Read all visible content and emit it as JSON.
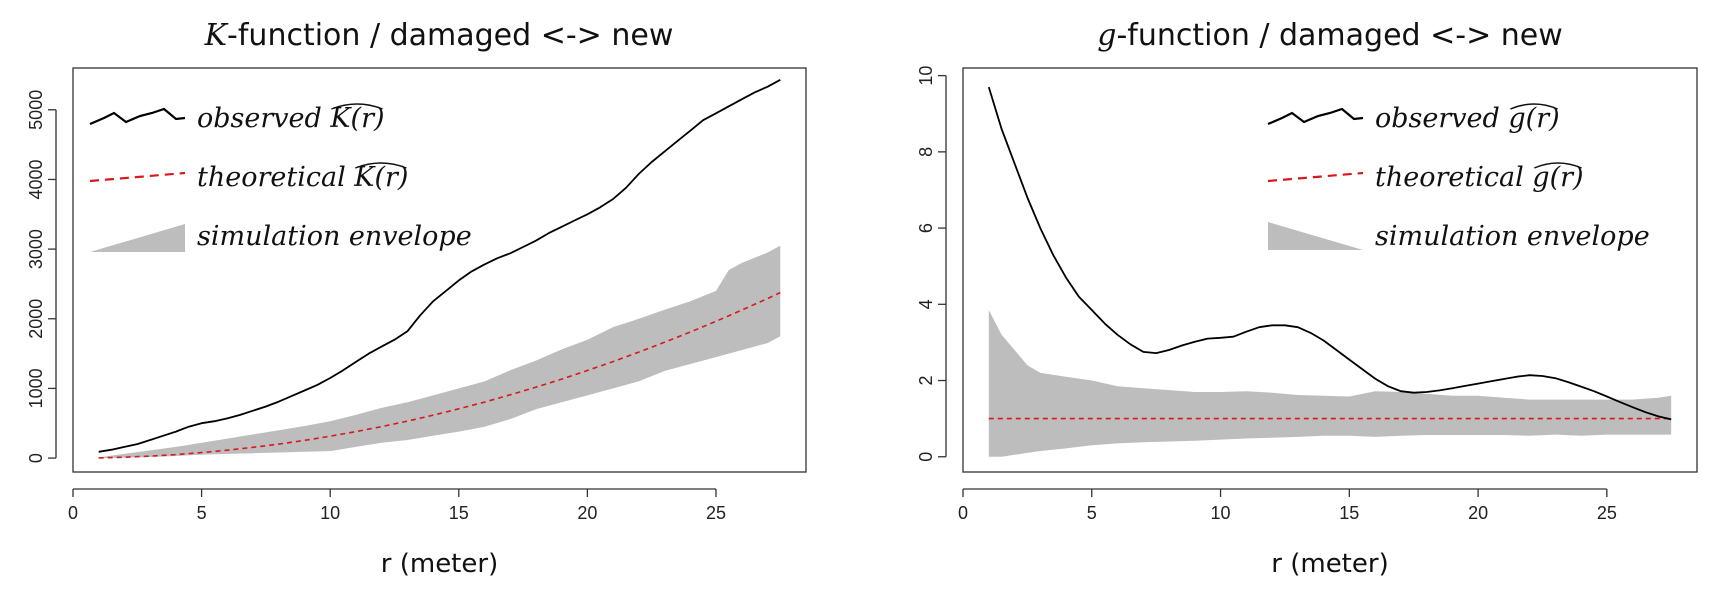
{
  "chart_data": [
    {
      "type": "line",
      "title_parts": [
        "K",
        "-function / damaged <-> new"
      ],
      "xlabel": "r (meter)",
      "ylabel": "",
      "xlim": [
        0,
        28.5
      ],
      "ylim": [
        -200,
        5600
      ],
      "xticks": [
        "0",
        "5",
        "10",
        "15",
        "20",
        "25"
      ],
      "yticks": [
        "0",
        "1000",
        "2000",
        "3000",
        "4000",
        "5000"
      ],
      "legend_position": "top-left",
      "legend": {
        "observed_prefix": "observed ",
        "observed_symbol": "K(r)",
        "theoretical_prefix": "theoretical ",
        "theoretical_symbol": "K(r)",
        "envelope": "simulation envelope"
      },
      "colors": {
        "observed": "#000000",
        "theoretical": "#d7191c",
        "envelope": "#bdbdbd"
      },
      "series": [
        {
          "kind": "observed",
          "x": [
            1,
            1.5,
            2,
            2.5,
            3,
            3.5,
            4,
            4.5,
            5,
            5.5,
            6,
            6.5,
            7,
            7.5,
            8,
            8.5,
            9,
            9.5,
            10,
            10.5,
            11,
            11.5,
            12,
            12.5,
            13,
            13.5,
            14,
            14.5,
            15,
            15.5,
            16,
            16.5,
            17,
            17.5,
            18,
            18.5,
            19,
            19.5,
            20,
            20.5,
            21,
            21.5,
            22,
            22.5,
            23,
            23.5,
            24,
            24.5,
            25,
            25.5,
            26,
            26.5,
            27,
            27.5
          ],
          "y": [
            90,
            120,
            160,
            200,
            260,
            320,
            380,
            450,
            500,
            530,
            570,
            620,
            680,
            740,
            810,
            890,
            970,
            1050,
            1150,
            1260,
            1380,
            1500,
            1600,
            1700,
            1820,
            2050,
            2250,
            2400,
            2550,
            2680,
            2780,
            2870,
            2940,
            3030,
            3120,
            3230,
            3320,
            3410,
            3500,
            3600,
            3720,
            3880,
            4080,
            4250,
            4400,
            4550,
            4700,
            4850,
            4950,
            5050,
            5150,
            5250,
            5330,
            5430
          ]
        },
        {
          "kind": "theoretical",
          "x": [
            1,
            2,
            3,
            4,
            5,
            6,
            7,
            8,
            9,
            10,
            11,
            12,
            13,
            14,
            15,
            16,
            17,
            18,
            19,
            20,
            21,
            22,
            23,
            24,
            25,
            26,
            27,
            27.5
          ],
          "y": [
            3,
            13,
            28,
            50,
            79,
            113,
            154,
            201,
            254,
            314,
            380,
            452,
            531,
            616,
            707,
            804,
            908,
            1018,
            1134,
            1257,
            1385,
            1521,
            1662,
            1810,
            1963,
            2124,
            2290,
            2376
          ]
        },
        {
          "kind": "envelope",
          "x": [
            1,
            2,
            3,
            4,
            5,
            6,
            7,
            8,
            9,
            10,
            11,
            12,
            13,
            14,
            15,
            16,
            17,
            18,
            19,
            20,
            21,
            22,
            23,
            24,
            25,
            25.5,
            26,
            27,
            27.5
          ],
          "upper": [
            10,
            60,
            110,
            160,
            220,
            280,
            340,
            400,
            460,
            530,
            620,
            720,
            800,
            900,
            1000,
            1100,
            1260,
            1400,
            1560,
            1700,
            1880,
            2000,
            2130,
            2250,
            2400,
            2700,
            2800,
            2950,
            3050
          ],
          "lower": [
            0,
            5,
            15,
            30,
            50,
            60,
            70,
            80,
            90,
            100,
            160,
            220,
            260,
            320,
            380,
            450,
            560,
            700,
            800,
            900,
            1000,
            1100,
            1250,
            1350,
            1450,
            1500,
            1550,
            1650,
            1750
          ]
        }
      ]
    },
    {
      "type": "line",
      "title_parts": [
        "g",
        "-function / damaged <-> new"
      ],
      "xlabel": "r (meter)",
      "ylabel": "",
      "xlim": [
        0,
        28.5
      ],
      "ylim": [
        -0.4,
        10.2
      ],
      "xticks": [
        "0",
        "5",
        "10",
        "15",
        "20",
        "25"
      ],
      "yticks": [
        "0",
        "2",
        "4",
        "6",
        "8",
        "10"
      ],
      "legend_position": "top-right",
      "legend": {
        "observed_prefix": "observed ",
        "observed_symbol": "g(r)",
        "theoretical_prefix": "theoretical ",
        "theoretical_symbol": "g(r)",
        "envelope": "simulation envelope"
      },
      "colors": {
        "observed": "#000000",
        "theoretical": "#d7191c",
        "envelope": "#bdbdbd"
      },
      "series": [
        {
          "kind": "observed",
          "x": [
            1,
            1.5,
            2,
            2.5,
            3,
            3.5,
            4,
            4.5,
            5,
            5.5,
            6,
            6.5,
            7,
            7.5,
            8,
            8.5,
            9,
            9.5,
            10,
            10.5,
            11,
            11.5,
            12,
            12.5,
            13,
            13.5,
            14,
            14.5,
            15,
            15.5,
            16,
            16.5,
            17,
            17.5,
            18,
            18.5,
            19,
            19.5,
            20,
            20.5,
            21,
            21.5,
            22,
            22.5,
            23,
            23.5,
            24,
            24.5,
            25,
            25.5,
            26,
            26.5,
            27,
            27.5
          ],
          "y": [
            9.7,
            8.6,
            7.7,
            6.8,
            6.0,
            5.3,
            4.7,
            4.2,
            3.85,
            3.5,
            3.2,
            2.95,
            2.75,
            2.72,
            2.8,
            2.92,
            3.02,
            3.1,
            3.12,
            3.15,
            3.28,
            3.4,
            3.45,
            3.45,
            3.4,
            3.25,
            3.05,
            2.8,
            2.55,
            2.3,
            2.05,
            1.85,
            1.72,
            1.68,
            1.7,
            1.74,
            1.8,
            1.86,
            1.92,
            1.98,
            2.04,
            2.1,
            2.14,
            2.12,
            2.06,
            1.96,
            1.84,
            1.72,
            1.58,
            1.44,
            1.3,
            1.17,
            1.06,
            0.98
          ]
        },
        {
          "kind": "theoretical",
          "x": [
            1,
            27.5
          ],
          "y": [
            1,
            1
          ]
        },
        {
          "kind": "envelope",
          "x": [
            1,
            1.5,
            2,
            2.5,
            3,
            4,
            5,
            6,
            7,
            8,
            9,
            10,
            11,
            12,
            13,
            14,
            15,
            16,
            17,
            18,
            19,
            20,
            21,
            22,
            23,
            24,
            25,
            26,
            27,
            27.5
          ],
          "upper": [
            3.85,
            3.2,
            2.8,
            2.4,
            2.2,
            2.1,
            2.0,
            1.85,
            1.8,
            1.75,
            1.7,
            1.7,
            1.72,
            1.68,
            1.62,
            1.6,
            1.58,
            1.72,
            1.7,
            1.65,
            1.6,
            1.6,
            1.55,
            1.5,
            1.5,
            1.5,
            1.5,
            1.5,
            1.55,
            1.6
          ],
          "lower": [
            0,
            0,
            0.05,
            0.1,
            0.15,
            0.22,
            0.3,
            0.35,
            0.38,
            0.4,
            0.42,
            0.45,
            0.48,
            0.5,
            0.52,
            0.55,
            0.55,
            0.52,
            0.55,
            0.57,
            0.57,
            0.57,
            0.57,
            0.55,
            0.58,
            0.55,
            0.58,
            0.58,
            0.58,
            0.58
          ]
        }
      ]
    }
  ]
}
